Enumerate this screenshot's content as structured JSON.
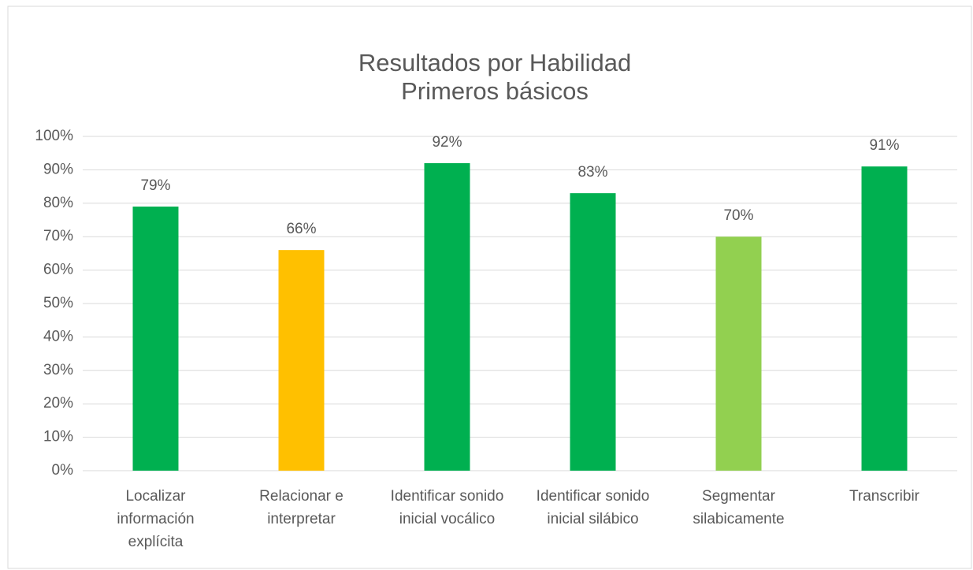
{
  "chart_data": {
    "type": "bar",
    "title": "Resultados por Habilidad",
    "subtitle": "Primeros básicos",
    "categories": [
      "Localizar\ninformación\nexplícita",
      "Relacionar e\ninterpretar",
      "Identificar sonido\ninicial vocálico",
      "Identificar sonido\ninicial silábico",
      "Segmentar\nsilabicamente",
      "Transcribir"
    ],
    "values": [
      79,
      66,
      92,
      83,
      70,
      91
    ],
    "value_labels": [
      "79%",
      "66%",
      "92%",
      "83%",
      "70%",
      "91%"
    ],
    "colors": [
      "#00b050",
      "#ffc000",
      "#00b050",
      "#00b050",
      "#92d050",
      "#00b050"
    ],
    "ylim": [
      0,
      100
    ],
    "yticks": [
      {
        "value": 0,
        "label": "0%"
      },
      {
        "value": 10,
        "label": "10%"
      },
      {
        "value": 20,
        "label": "20%"
      },
      {
        "value": 30,
        "label": "30%"
      },
      {
        "value": 40,
        "label": "40%"
      },
      {
        "value": 50,
        "label": "50%"
      },
      {
        "value": 60,
        "label": "60%"
      },
      {
        "value": 70,
        "label": "70%"
      },
      {
        "value": 80,
        "label": "80%"
      },
      {
        "value": 90,
        "label": "90%"
      },
      {
        "value": 100,
        "label": "100%"
      }
    ],
    "grid": true
  }
}
